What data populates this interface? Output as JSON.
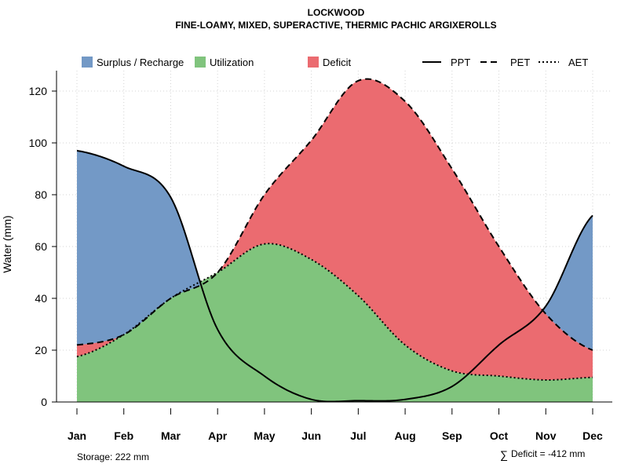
{
  "chart_data": {
    "type": "area",
    "title": "LOCKWOOD",
    "subtitle": "FINE-LOAMY, MIXED, SUPERACTIVE, THERMIC PACHIC ARGIXEROLLS",
    "ylabel": "Water (mm)",
    "xlabel": "",
    "ylim": [
      0,
      128
    ],
    "yticks": [
      0,
      20,
      40,
      60,
      80,
      100,
      120
    ],
    "grid": true,
    "legend_position": "top",
    "categories": [
      "Jan",
      "Feb",
      "Mar",
      "Apr",
      "May",
      "Jun",
      "Jul",
      "Aug",
      "Sep",
      "Oct",
      "Nov",
      "Dec"
    ],
    "series": [
      {
        "name": "PPT",
        "style": "solid",
        "values": [
          97,
          91,
          79,
          28,
          10,
          1,
          0.5,
          1,
          6,
          22,
          37,
          72
        ]
      },
      {
        "name": "PET",
        "style": "dashed",
        "values": [
          22,
          26,
          40,
          50,
          80,
          101,
          124,
          116,
          90,
          60,
          34,
          20
        ]
      },
      {
        "name": "AET",
        "style": "dotted",
        "values": [
          17.5,
          26,
          40,
          50,
          61,
          55,
          41,
          22,
          12,
          10,
          8.5,
          9.5
        ]
      }
    ],
    "fill_areas": [
      {
        "name": "Surplus / Recharge",
        "color": "#7399c6"
      },
      {
        "name": "Utilization",
        "color": "#80c47d"
      },
      {
        "name": "Deficit",
        "color": "#eb6b70"
      }
    ],
    "annotations": {
      "storage": "Storage: 222 mm",
      "deficit_symbol": "∑",
      "deficit": "Deficit = -412 mm"
    }
  }
}
